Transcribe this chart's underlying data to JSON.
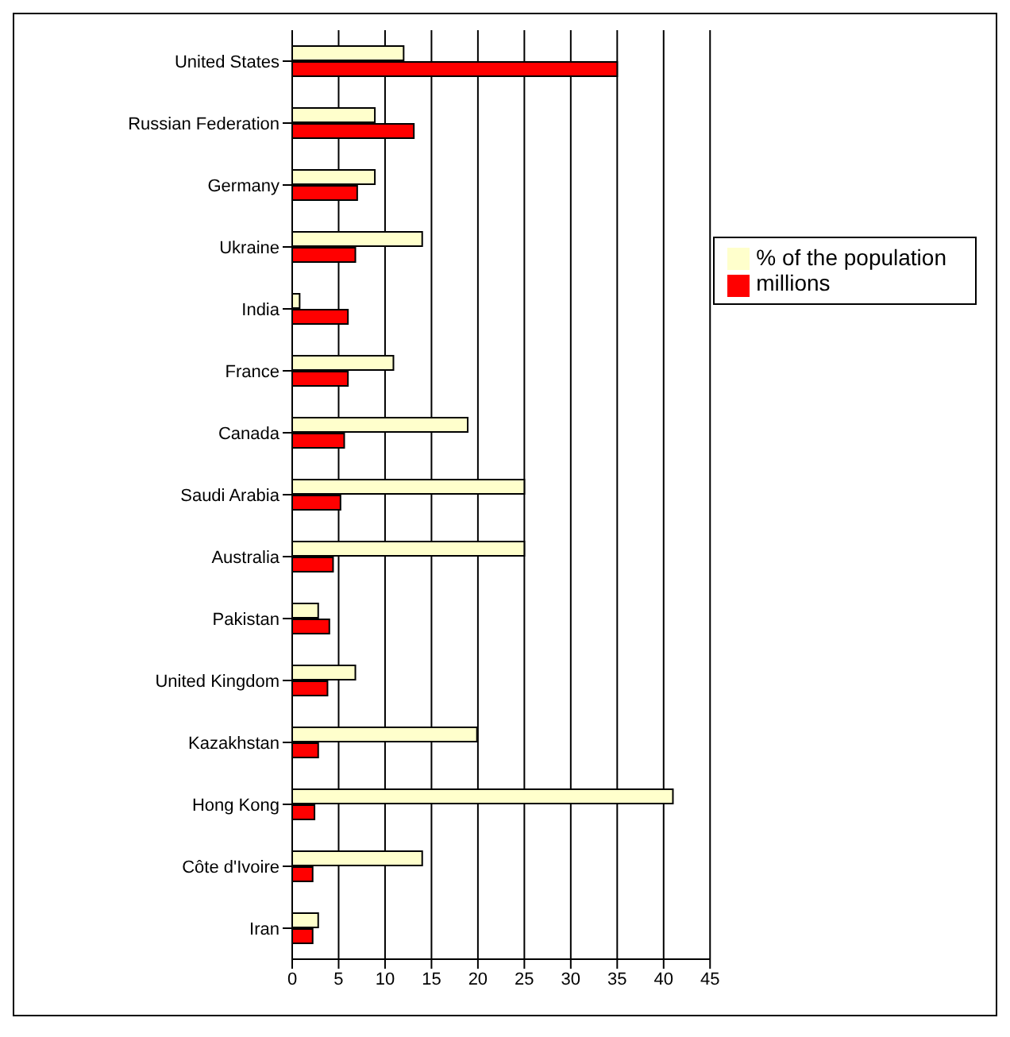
{
  "chart_data": {
    "type": "bar",
    "orientation": "horizontal",
    "categories": [
      "United States",
      "Russian Federation",
      "Germany",
      "Ukraine",
      "India",
      "France",
      "Canada",
      "Saudi Arabia",
      "Australia",
      "Pakistan",
      "United Kingdom",
      "Kazakhstan",
      "Hong Kong",
      "Côte d'Ivoire",
      "Iran"
    ],
    "series": [
      {
        "name": "% of the population",
        "color": "#ffffcc",
        "values": [
          12,
          8.9,
          8.9,
          14,
          0.8,
          10.9,
          18.9,
          25,
          25,
          2.8,
          6.8,
          19.9,
          41,
          14,
          2.8
        ]
      },
      {
        "name": "millions",
        "color": "#ff0000",
        "values": [
          35,
          13.1,
          7.0,
          6.8,
          6.0,
          6.0,
          5.6,
          5.2,
          4.4,
          4.0,
          3.8,
          2.8,
          2.4,
          2.2,
          2.2
        ]
      }
    ],
    "xlim": [
      0,
      45
    ],
    "xticks": [
      0,
      5,
      10,
      15,
      20,
      25,
      30,
      35,
      40,
      45
    ],
    "grid": "x",
    "legend": "top right"
  }
}
